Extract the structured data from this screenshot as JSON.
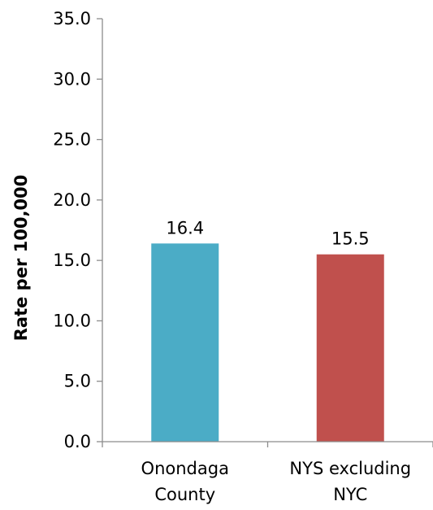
{
  "chart_data": {
    "type": "bar",
    "title": "",
    "xlabel": "",
    "ylabel": "Rate per 100,000",
    "categories": [
      [
        "Onondaga",
        "County"
      ],
      [
        "NYS excluding",
        "NYC"
      ]
    ],
    "values": [
      16.4,
      15.5
    ],
    "data_labels": [
      "16.4",
      "15.5"
    ],
    "bar_colors": [
      "#4bacc6",
      "#c0504d"
    ],
    "ylim": [
      0,
      35
    ],
    "yticks": [
      0,
      5,
      10,
      15,
      20,
      25,
      30,
      35
    ],
    "ytick_labels": [
      "0.0",
      "5.0",
      "10.0",
      "15.0",
      "20.0",
      "25.0",
      "30.0",
      "35.0"
    ],
    "grid": false,
    "legend": "none"
  }
}
